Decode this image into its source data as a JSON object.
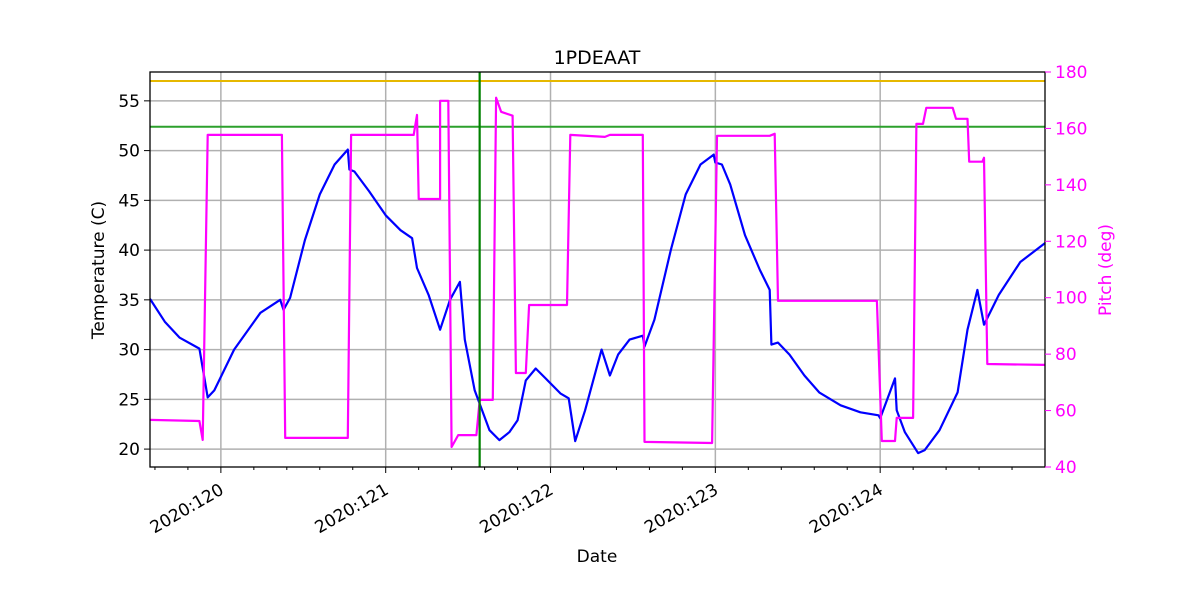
{
  "chart_data": {
    "type": "line",
    "title": "1PDEAAT",
    "xlabel": "Date",
    "ylabel": "Temperature (C)",
    "y2label": "Pitch (deg)",
    "xlim": [
      119.57,
      125.0
    ],
    "ylim": [
      18.2,
      57.9
    ],
    "y2lim": [
      40,
      180
    ],
    "grid": true,
    "x_ticks": [
      120,
      121,
      122,
      123,
      124
    ],
    "x_tick_labels": [
      "2020:120",
      "2020:121",
      "2020:122",
      "2020:123",
      "2020:124"
    ],
    "y_ticks": [
      20,
      25,
      30,
      35,
      40,
      45,
      50,
      55
    ],
    "y_tick_labels": [
      "20",
      "25",
      "30",
      "35",
      "40",
      "45",
      "50",
      "55"
    ],
    "y2_ticks": [
      40,
      60,
      80,
      100,
      120,
      140,
      160,
      180
    ],
    "y2_tick_labels": [
      "40",
      "60",
      "80",
      "100",
      "120",
      "140",
      "160",
      "180"
    ],
    "hlines": [
      {
        "name": "yellow-limit",
        "value": 57.0,
        "color": "#e6b800"
      },
      {
        "name": "green-limit",
        "value": 52.4,
        "color": "#2ca02c"
      }
    ],
    "vline": {
      "value": 121.57,
      "color": "#008000"
    },
    "series": [
      {
        "name": "Temperature",
        "axis": "left",
        "color": "#0000ff",
        "points": [
          [
            119.57,
            35.1
          ],
          [
            119.66,
            32.8
          ],
          [
            119.75,
            31.2
          ],
          [
            119.87,
            30.1
          ],
          [
            119.92,
            25.2
          ],
          [
            119.96,
            25.9
          ],
          [
            120.08,
            30.0
          ],
          [
            120.24,
            33.7
          ],
          [
            120.36,
            35.0
          ],
          [
            120.38,
            34.0
          ],
          [
            120.42,
            35.2
          ],
          [
            120.51,
            41.0
          ],
          [
            120.6,
            45.6
          ],
          [
            120.69,
            48.6
          ],
          [
            120.77,
            50.1
          ],
          [
            120.78,
            48.1
          ],
          [
            120.81,
            47.9
          ],
          [
            120.9,
            45.9
          ],
          [
            121.0,
            43.5
          ],
          [
            121.09,
            42.0
          ],
          [
            121.16,
            41.2
          ],
          [
            121.19,
            38.2
          ],
          [
            121.26,
            35.5
          ],
          [
            121.33,
            32.0
          ],
          [
            121.39,
            35.0
          ],
          [
            121.45,
            36.8
          ],
          [
            121.48,
            31.0
          ],
          [
            121.54,
            25.9
          ],
          [
            121.63,
            21.9
          ],
          [
            121.69,
            20.9
          ],
          [
            121.75,
            21.7
          ],
          [
            121.8,
            22.9
          ],
          [
            121.85,
            26.9
          ],
          [
            121.91,
            28.1
          ],
          [
            121.97,
            27.1
          ],
          [
            122.06,
            25.6
          ],
          [
            122.11,
            25.1
          ],
          [
            122.15,
            20.8
          ],
          [
            122.21,
            23.9
          ],
          [
            122.31,
            30.0
          ],
          [
            122.36,
            27.4
          ],
          [
            122.41,
            29.5
          ],
          [
            122.48,
            31.0
          ],
          [
            122.56,
            31.4
          ],
          [
            122.57,
            30.3
          ],
          [
            122.63,
            33.0
          ],
          [
            122.73,
            40.0
          ],
          [
            122.82,
            45.6
          ],
          [
            122.91,
            48.6
          ],
          [
            122.99,
            49.6
          ],
          [
            123.0,
            48.8
          ],
          [
            123.04,
            48.6
          ],
          [
            123.09,
            46.6
          ],
          [
            123.18,
            41.5
          ],
          [
            123.27,
            38.0
          ],
          [
            123.33,
            36.0
          ],
          [
            123.34,
            30.5
          ],
          [
            123.38,
            30.7
          ],
          [
            123.45,
            29.5
          ],
          [
            123.54,
            27.4
          ],
          [
            123.63,
            25.7
          ],
          [
            123.76,
            24.4
          ],
          [
            123.88,
            23.7
          ],
          [
            123.99,
            23.4
          ],
          [
            124.0,
            23.1
          ],
          [
            124.09,
            27.1
          ],
          [
            124.1,
            23.9
          ],
          [
            124.15,
            21.7
          ],
          [
            124.23,
            19.6
          ],
          [
            124.27,
            19.9
          ],
          [
            124.36,
            21.9
          ],
          [
            124.47,
            25.7
          ],
          [
            124.53,
            32.0
          ],
          [
            124.59,
            36.0
          ],
          [
            124.63,
            32.5
          ],
          [
            124.72,
            35.5
          ],
          [
            124.85,
            38.8
          ],
          [
            125.0,
            40.7
          ]
        ]
      },
      {
        "name": "Pitch",
        "axis": "right",
        "color": "#ff00ff",
        "points": [
          [
            119.57,
            56.7
          ],
          [
            119.87,
            56.3
          ],
          [
            119.89,
            49.6
          ],
          [
            119.92,
            157.7
          ],
          [
            120.37,
            157.7
          ],
          [
            120.39,
            50.3
          ],
          [
            120.77,
            50.3
          ],
          [
            120.79,
            157.7
          ],
          [
            121.17,
            157.7
          ],
          [
            121.19,
            164.8
          ],
          [
            121.2,
            135.0
          ],
          [
            121.33,
            135.0
          ],
          [
            121.33,
            169.8
          ],
          [
            121.38,
            169.8
          ],
          [
            121.4,
            47.1
          ],
          [
            121.44,
            51.3
          ],
          [
            121.55,
            51.3
          ],
          [
            121.57,
            63.8
          ],
          [
            121.65,
            63.8
          ],
          [
            121.67,
            170.9
          ],
          [
            121.7,
            165.9
          ],
          [
            121.77,
            164.5
          ],
          [
            121.79,
            73.3
          ],
          [
            121.85,
            73.3
          ],
          [
            121.87,
            97.4
          ],
          [
            122.1,
            97.4
          ],
          [
            122.12,
            157.7
          ],
          [
            122.33,
            157.0
          ],
          [
            122.36,
            157.7
          ],
          [
            122.56,
            157.7
          ],
          [
            122.57,
            48.9
          ],
          [
            122.98,
            48.5
          ],
          [
            123.01,
            157.4
          ],
          [
            123.33,
            157.4
          ],
          [
            123.36,
            158.1
          ],
          [
            123.38,
            98.9
          ],
          [
            123.98,
            98.9
          ],
          [
            124.01,
            49.2
          ],
          [
            124.09,
            49.2
          ],
          [
            124.1,
            57.4
          ],
          [
            124.2,
            57.4
          ],
          [
            124.22,
            161.6
          ],
          [
            124.26,
            161.6
          ],
          [
            124.28,
            167.3
          ],
          [
            124.44,
            167.3
          ],
          [
            124.46,
            163.4
          ],
          [
            124.53,
            163.4
          ],
          [
            124.54,
            148.2
          ],
          [
            124.62,
            148.2
          ],
          [
            124.63,
            149.6
          ],
          [
            124.65,
            76.5
          ],
          [
            125.0,
            76.2
          ]
        ]
      }
    ]
  }
}
